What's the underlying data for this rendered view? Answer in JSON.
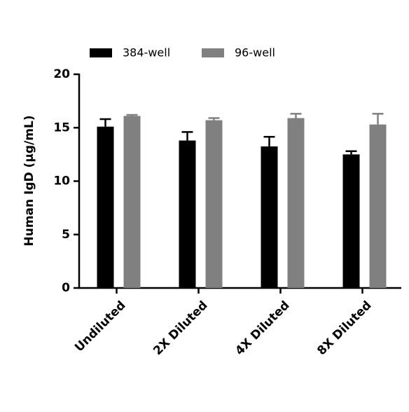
{
  "chart_data": {
    "type": "bar",
    "ylabel": "Human IgD (µg/mL)",
    "categories": [
      "Undiluted",
      "2X Diluted",
      "4X Diluted",
      "8X Diluted"
    ],
    "series": [
      {
        "name": "384-well",
        "color": "#000000",
        "values": [
          15.1,
          13.8,
          13.25,
          12.5
        ],
        "errors": [
          0.7,
          0.8,
          0.9,
          0.3
        ]
      },
      {
        "name": "96-well",
        "color": "#808080",
        "values": [
          16.1,
          15.7,
          15.9,
          15.3
        ],
        "errors": [
          0.1,
          0.2,
          0.4,
          1.0
        ]
      }
    ],
    "ylim": [
      0,
      20
    ],
    "yticks": [
      0,
      5,
      10,
      15,
      20
    ],
    "grid": false,
    "legend": "top"
  }
}
